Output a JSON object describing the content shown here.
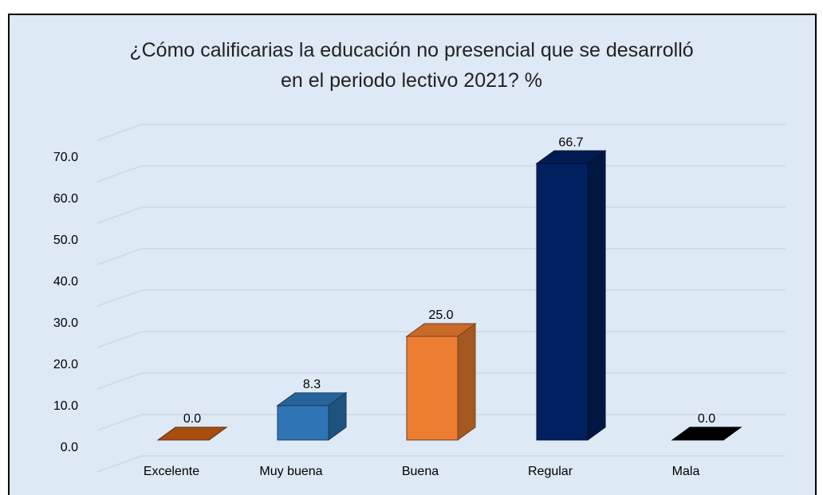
{
  "chart_data": {
    "type": "bar3d",
    "title": "¿Cómo calificarias la educación no presencial que se desarrolló en el periodo lectivo 2021? %",
    "categories": [
      "Excelente",
      "Muy buena",
      "Buena",
      "Regular",
      "Mala"
    ],
    "values": [
      0,
      8.3,
      25,
      66.7,
      0
    ],
    "value_labels": [
      "0.0",
      "8.3",
      "25.0",
      "66.7",
      "0.0"
    ],
    "colors": [
      "#c55a11",
      "#2e75b6",
      "#ed7d31",
      "#002060",
      "#000000"
    ],
    "ylim": [
      0,
      80
    ],
    "yticks": [
      {
        "value": 0,
        "label": "0.0"
      },
      {
        "value": 10,
        "label": "10.0"
      },
      {
        "value": 20,
        "label": "20.0"
      },
      {
        "value": 30,
        "label": "30.0"
      },
      {
        "value": 40,
        "label": "40.0"
      },
      {
        "value": 50,
        "label": "50.0"
      },
      {
        "value": 60,
        "label": "60.0"
      },
      {
        "value": 70,
        "label": "70.0"
      }
    ],
    "grid": true
  }
}
